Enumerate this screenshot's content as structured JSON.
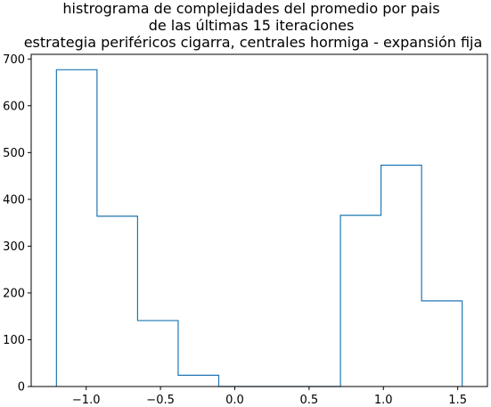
{
  "chart_data": {
    "type": "bar",
    "histtype": "step",
    "title_lines": [
      "histrograma de complejidades del promedio por pais",
      "de las últimas 15 iteraciones",
      "estrategia periféricos cigarra, centrales hormiga - expansión fija"
    ],
    "xlabel": "",
    "ylabel": "",
    "bin_edges": [
      -1.2,
      -0.927,
      -0.654,
      -0.381,
      -0.108,
      0.165,
      0.438,
      0.711,
      0.984,
      1.257,
      1.53
    ],
    "values": [
      677,
      364,
      141,
      24,
      0,
      0,
      0,
      366,
      473,
      183
    ],
    "xlim": [
      -1.37,
      1.7
    ],
    "ylim": [
      0,
      710
    ],
    "xticks": [
      -1.0,
      -0.5,
      0.0,
      0.5,
      1.0,
      1.5
    ],
    "xtick_labels": [
      "−1.0",
      "−0.5",
      "0.0",
      "0.5",
      "1.0",
      "1.5"
    ],
    "yticks": [
      0,
      100,
      200,
      300,
      400,
      500,
      600,
      700
    ],
    "ytick_labels": [
      "0",
      "100",
      "200",
      "300",
      "400",
      "500",
      "600",
      "700"
    ],
    "grid": false,
    "color": "#1f77b4"
  }
}
